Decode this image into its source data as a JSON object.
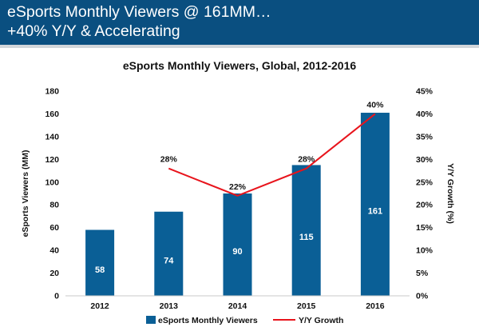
{
  "slide": {
    "title_line1": "eSports Monthly Viewers @ 161MM…",
    "title_line2": "+40% Y/Y & Accelerating"
  },
  "chart_data": {
    "type": "bar",
    "title": "eSports Monthly Viewers, Global, 2012-2016",
    "categories": [
      "2012",
      "2013",
      "2014",
      "2015",
      "2016"
    ],
    "series": [
      {
        "name": "eSports Monthly Viewers",
        "type": "bar",
        "axis": "left",
        "values": [
          58,
          74,
          90,
          115,
          161
        ],
        "labels": [
          "58",
          "74",
          "90",
          "115",
          "161"
        ]
      },
      {
        "name": "Y/Y Growth",
        "type": "line",
        "axis": "right",
        "values": [
          null,
          28,
          22,
          28,
          40
        ],
        "labels": [
          "",
          "28%",
          "22%",
          "28%",
          "40%"
        ]
      }
    ],
    "ylabel": "eSports Viewers (MM)",
    "ylabel_right": "Y/Y Growth (%)",
    "ylim": [
      0,
      180
    ],
    "ylim_right": [
      0,
      45
    ],
    "yticks": [
      "0",
      "20",
      "40",
      "60",
      "80",
      "100",
      "120",
      "140",
      "160",
      "180"
    ],
    "yticks_right": [
      "0%",
      "5%",
      "10%",
      "15%",
      "20%",
      "25%",
      "30%",
      "35%",
      "40%",
      "45%"
    ],
    "grid": false,
    "legend_position": "bottom",
    "colors": {
      "bar": "#0a5f96",
      "line": "#e8141c",
      "banner": "#0a4f80"
    }
  }
}
